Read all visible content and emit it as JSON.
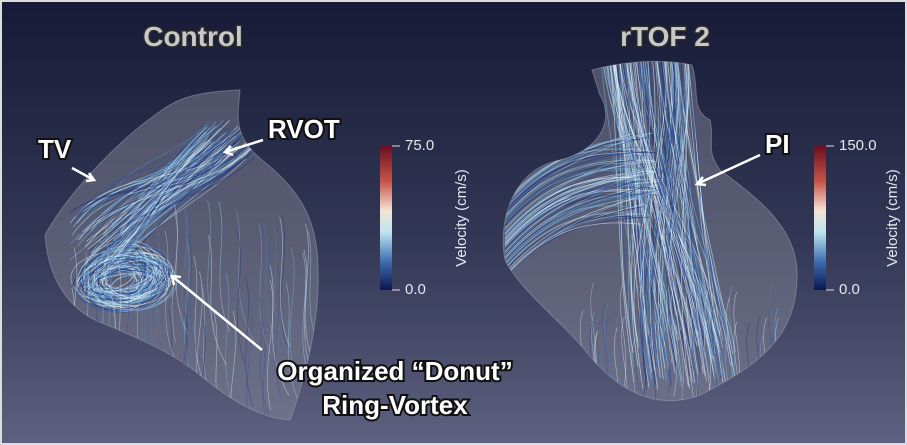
{
  "panels": [
    {
      "title": "Control",
      "colorbar": {
        "max_label": "75.0",
        "min_label": "0.0",
        "label": "Velocity (cm/s)"
      },
      "annotations": [
        "TV",
        "RVOT",
        "Organized “Donut”",
        "Ring-Vortex"
      ]
    },
    {
      "title": "rTOF 2",
      "colorbar": {
        "max_label": "150.0",
        "min_label": "0.0",
        "label": "Velocity (cm/s)"
      },
      "annotations": [
        "PI"
      ]
    }
  ]
}
